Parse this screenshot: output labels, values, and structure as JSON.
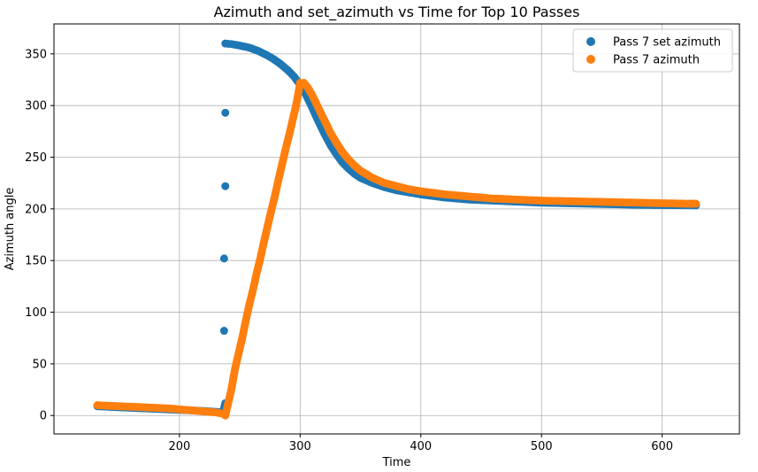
{
  "chart_data": {
    "type": "scatter",
    "title": "Azimuth and set_azimuth vs Time for Top 10 Passes",
    "xlabel": "Time",
    "ylabel": "Azimuth angle",
    "xlim": [
      96,
      664
    ],
    "ylim": [
      -17.8,
      379
    ],
    "xticks": [
      200,
      300,
      400,
      500,
      600
    ],
    "yticks": [
      0,
      50,
      100,
      150,
      200,
      250,
      300,
      350
    ],
    "grid": true,
    "legend_position": "top-right",
    "series": [
      {
        "name": "Pass 7 set azimuth",
        "color": "#1f77b4",
        "points": [
          [
            132,
            9
          ],
          [
            150,
            8
          ],
          [
            170,
            7
          ],
          [
            190,
            6
          ],
          [
            210,
            5
          ],
          [
            225,
            4
          ],
          [
            236,
            3
          ],
          [
            238,
            12
          ],
          [
            237,
            82
          ],
          [
            237,
            152
          ],
          [
            238,
            222
          ],
          [
            238,
            293
          ],
          [
            238,
            360
          ],
          [
            243,
            359.5
          ],
          [
            250,
            358
          ],
          [
            258,
            356
          ],
          [
            265,
            353
          ],
          [
            272,
            349
          ],
          [
            278,
            345
          ],
          [
            284,
            340
          ],
          [
            290,
            334
          ],
          [
            295,
            328
          ],
          [
            300,
            320
          ],
          [
            305,
            310
          ],
          [
            310,
            298
          ],
          [
            315,
            285
          ],
          [
            320,
            273
          ],
          [
            325,
            262
          ],
          [
            330,
            253
          ],
          [
            335,
            245
          ],
          [
            340,
            239
          ],
          [
            345,
            234
          ],
          [
            350,
            230
          ],
          [
            360,
            225
          ],
          [
            370,
            221
          ],
          [
            380,
            218
          ],
          [
            390,
            216
          ],
          [
            400,
            214
          ],
          [
            420,
            211
          ],
          [
            440,
            209
          ],
          [
            460,
            208
          ],
          [
            480,
            207
          ],
          [
            500,
            206
          ],
          [
            520,
            205.5
          ],
          [
            540,
            205
          ],
          [
            560,
            204.5
          ],
          [
            580,
            204
          ],
          [
            600,
            203.7
          ],
          [
            620,
            203.5
          ],
          [
            628,
            203.4
          ]
        ]
      },
      {
        "name": "Pass 7 azimuth",
        "color": "#ff7f0e",
        "points": [
          [
            132,
            10
          ],
          [
            140,
            9.5
          ],
          [
            150,
            9
          ],
          [
            160,
            8.5
          ],
          [
            170,
            8
          ],
          [
            180,
            7.5
          ],
          [
            190,
            7
          ],
          [
            200,
            6
          ],
          [
            210,
            5
          ],
          [
            220,
            4
          ],
          [
            230,
            3
          ],
          [
            235,
            2
          ],
          [
            238,
            0
          ],
          [
            240,
            10
          ],
          [
            243,
            25
          ],
          [
            246,
            45
          ],
          [
            249,
            60
          ],
          [
            252,
            75
          ],
          [
            255,
            92
          ],
          [
            258,
            108
          ],
          [
            261,
            122
          ],
          [
            264,
            138
          ],
          [
            267,
            152
          ],
          [
            270,
            168
          ],
          [
            273,
            183
          ],
          [
            276,
            198
          ],
          [
            279,
            212
          ],
          [
            282,
            228
          ],
          [
            285,
            243
          ],
          [
            288,
            258
          ],
          [
            291,
            272
          ],
          [
            294,
            287
          ],
          [
            297,
            302
          ],
          [
            300,
            322
          ],
          [
            303,
            322
          ],
          [
            306,
            318
          ],
          [
            310,
            310
          ],
          [
            315,
            298
          ],
          [
            320,
            286
          ],
          [
            325,
            274
          ],
          [
            330,
            264
          ],
          [
            335,
            255
          ],
          [
            340,
            248
          ],
          [
            345,
            242
          ],
          [
            350,
            237
          ],
          [
            360,
            230
          ],
          [
            370,
            225
          ],
          [
            380,
            222
          ],
          [
            390,
            219
          ],
          [
            400,
            217
          ],
          [
            420,
            214
          ],
          [
            440,
            212
          ],
          [
            460,
            210
          ],
          [
            480,
            209
          ],
          [
            500,
            208
          ],
          [
            520,
            207.5
          ],
          [
            540,
            207
          ],
          [
            560,
            206.5
          ],
          [
            580,
            206
          ],
          [
            600,
            205.5
          ],
          [
            620,
            205
          ],
          [
            628,
            205
          ]
        ]
      }
    ]
  }
}
